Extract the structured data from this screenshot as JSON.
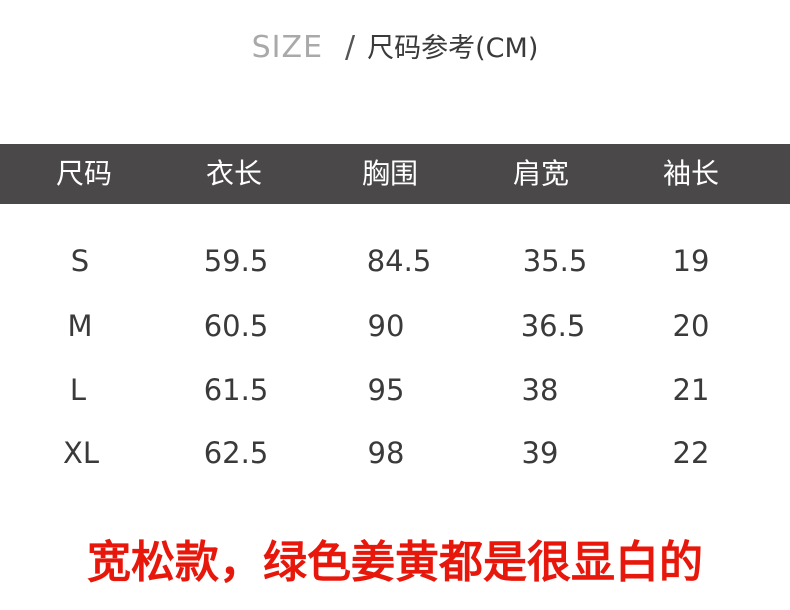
{
  "title": {
    "en": "SIZE",
    "separator": "/",
    "cn": "尺码参考(CM)"
  },
  "table": {
    "headers": [
      "尺码",
      "衣长",
      "胸围",
      "肩宽",
      "袖长"
    ],
    "rows": [
      [
        "S",
        "59.5",
        "84.5",
        "35.5",
        "19"
      ],
      [
        "M",
        "60.5",
        "90",
        "36.5",
        "20"
      ],
      [
        "L",
        "61.5",
        "95",
        "38",
        "21"
      ],
      [
        "XL",
        "62.5",
        "98",
        "39",
        "22"
      ]
    ]
  },
  "note": "宽松款，绿色姜黄都是很显白的",
  "colors": {
    "header_bg": "#4a4848",
    "note": "#e8170b",
    "title_en": "#a9a9a9"
  }
}
